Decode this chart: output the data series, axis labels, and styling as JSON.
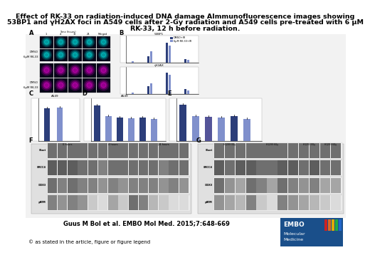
{
  "title_line1": "Effect of RK-33 on radiation-induced DNA damage AImmunofluorescence images showing",
  "title_line2": "53BP1 and γH2AX foci in A549 cells after 2-Gy radiation and A549 cells pre-treated with 6 μM",
  "title_line3": "RK-33, 12 h before radiation.",
  "citation": "Guus M Bol et al. EMBO Mol Med. 2015;7:648-669",
  "copyright": "© as stated in the article, figure or figure legend",
  "bg_color": "#ffffff",
  "title_fontsize": 6.8,
  "citation_fontsize": 6.0,
  "copyright_fontsize": 5.0,
  "embo_box_color": "#1a4f8a",
  "panel_label_fontsize": 6,
  "dark_blue": "#2c3e7a",
  "light_blue": "#8090cc",
  "wb_bg": "#d8d8d8",
  "wb_band_dark": "#555555",
  "wb_band_light": "#aaaaaa"
}
